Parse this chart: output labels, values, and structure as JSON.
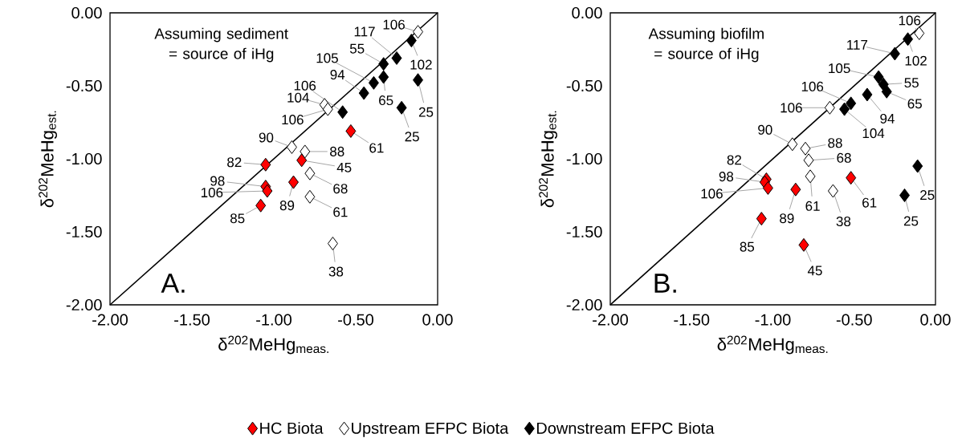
{
  "chart_data": [
    {
      "type": "scatter",
      "xlabel": "δ$^{202}$MeHg$_{meas.}$",
      "ylabel": "δ$^{202}$MeHg$_{est.}$",
      "annotations": [
        "Assuming sediment = source of iHg",
        "A.",
        {
          "text": "61",
          "x": -0.53,
          "y": -0.81
        },
        {
          "text": "45",
          "x": -0.83,
          "y": -1.01
        },
        {
          "text": "82",
          "x": -1.05,
          "y": -1.04
        },
        {
          "text": "89",
          "x": -0.88,
          "y": -1.16
        },
        {
          "text": "98",
          "x": -1.05,
          "y": -1.19
        },
        {
          "text": "106",
          "x": -1.04,
          "y": -1.22
        },
        {
          "text": "85",
          "x": -1.08,
          "y": -1.32
        },
        {
          "text": "106",
          "x": -0.12,
          "y": -0.13
        },
        {
          "text": "104",
          "x": -0.69,
          "y": -0.63
        },
        {
          "text": "106",
          "x": -0.67,
          "y": -0.66
        },
        {
          "text": "90",
          "x": -0.89,
          "y": -0.92
        },
        {
          "text": "88",
          "x": -0.81,
          "y": -0.95
        },
        {
          "text": "68",
          "x": -0.78,
          "y": -1.1
        },
        {
          "text": "61",
          "x": -0.78,
          "y": -1.26
        },
        {
          "text": "38",
          "x": -0.64,
          "y": -1.58
        },
        {
          "text": "102",
          "x": -0.16,
          "y": -0.19
        },
        {
          "text": "117",
          "x": -0.25,
          "y": -0.31
        },
        {
          "text": "55",
          "x": -0.33,
          "y": -0.35
        },
        {
          "text": "105",
          "x": -0.39,
          "y": -0.48
        },
        {
          "text": "65",
          "x": -0.33,
          "y": -0.44
        },
        {
          "text": "94",
          "x": -0.45,
          "y": -0.55
        },
        {
          "text": "106",
          "x": -0.58,
          "y": -0.68
        },
        {
          "text": "25",
          "x": -0.12,
          "y": -0.46
        },
        {
          "text": "25",
          "x": -0.22,
          "y": -0.65
        }
      ],
      "xlim": [
        -2,
        0
      ],
      "ylim": [
        -2,
        0
      ],
      "xticks": [
        {
          "value": -2,
          "label": "-2.00"
        },
        {
          "value": -1.5,
          "label": "-1.50"
        },
        {
          "value": -1,
          "label": "-1.00"
        },
        {
          "value": -0.5,
          "label": "-0.50"
        },
        {
          "value": 0,
          "label": "0.00"
        }
      ],
      "yticks": [
        {
          "value": -2,
          "label": "-2.00"
        },
        {
          "value": -1.5,
          "label": "-1.50"
        },
        {
          "value": -1,
          "label": "-1.00"
        },
        {
          "value": -0.5,
          "label": "-0.50"
        },
        {
          "value": 0,
          "label": "0.00"
        }
      ],
      "marker": "diamond",
      "legend": "bottom",
      "series": [
        {
          "type": "line",
          "color": "#000000",
          "x": [
            -2,
            0
          ],
          "values": [
            -2,
            0
          ],
          "marker": "none"
        },
        {
          "name": "HC Biota",
          "color": "#ff0000",
          "x": [
            -0.53,
            -0.83,
            -1.05,
            -0.88,
            -1.05,
            -1.04,
            -1.08
          ],
          "values": [
            -0.81,
            -1.01,
            -1.04,
            -1.16,
            -1.19,
            -1.22,
            -1.32
          ]
        },
        {
          "name": "Upstream EFPC Biota",
          "color": "#ffffff",
          "x": [
            -0.12,
            -0.69,
            -0.67,
            -0.89,
            -0.81,
            -0.78,
            -0.78,
            -0.64
          ],
          "values": [
            -0.13,
            -0.63,
            -0.66,
            -0.92,
            -0.95,
            -1.1,
            -1.26,
            -1.58
          ]
        },
        {
          "name": "Downstream EFPC Biota",
          "color": "#000000",
          "x": [
            -0.16,
            -0.25,
            -0.33,
            -0.39,
            -0.33,
            -0.45,
            -0.58,
            -0.12,
            -0.22
          ],
          "values": [
            -0.19,
            -0.31,
            -0.35,
            -0.48,
            -0.44,
            -0.55,
            -0.68,
            -0.46,
            -0.65
          ]
        }
      ]
    },
    {
      "type": "scatter",
      "xlabel": "δ$^{202}$MeHg$_{meas.}$",
      "ylabel": "δ$^{202}$MeHg$_{est.}$",
      "annotations": [
        "Assuming biofilm = source of iHg",
        "B.",
        {
          "text": "82",
          "x": -1.04,
          "y": -1.14
        },
        {
          "text": "98",
          "x": -1.05,
          "y": -1.16
        },
        {
          "text": "106",
          "x": -1.03,
          "y": -1.2
        },
        {
          "text": "89",
          "x": -0.86,
          "y": -1.21
        },
        {
          "text": "61",
          "x": -0.52,
          "y": -1.13
        },
        {
          "text": "85",
          "x": -1.07,
          "y": -1.41
        },
        {
          "text": "45",
          "x": -0.81,
          "y": -1.59
        },
        {
          "text": "106",
          "x": -0.1,
          "y": -0.14
        },
        {
          "text": "106",
          "x": -0.65,
          "y": -0.65
        },
        {
          "text": "90",
          "x": -0.88,
          "y": -0.9
        },
        {
          "text": "88",
          "x": -0.8,
          "y": -0.93
        },
        {
          "text": "68",
          "x": -0.78,
          "y": -1.01
        },
        {
          "text": "61",
          "x": -0.77,
          "y": -1.12
        },
        {
          "text": "38",
          "x": -0.63,
          "y": -1.22
        },
        {
          "text": "102",
          "x": -0.17,
          "y": -0.18
        },
        {
          "text": "117",
          "x": -0.25,
          "y": -0.28
        },
        {
          "text": "105",
          "x": -0.35,
          "y": -0.44
        },
        {
          "text": "55",
          "x": -0.32,
          "y": -0.49
        },
        {
          "text": "65",
          "x": -0.3,
          "y": -0.54
        },
        {
          "text": "94",
          "x": -0.42,
          "y": -0.56
        },
        {
          "text": "106",
          "x": -0.52,
          "y": -0.62
        },
        {
          "text": "104",
          "x": -0.56,
          "y": -0.66
        },
        {
          "text": "25",
          "x": -0.11,
          "y": -1.05
        },
        {
          "text": "25",
          "x": -0.19,
          "y": -1.25
        }
      ],
      "xlim": [
        -2,
        0
      ],
      "ylim": [
        -2,
        0
      ],
      "xticks": [
        {
          "value": -2,
          "label": "-2.00"
        },
        {
          "value": -1.5,
          "label": "-1.50"
        },
        {
          "value": -1,
          "label": "-1.00"
        },
        {
          "value": -0.5,
          "label": "-0.50"
        },
        {
          "value": 0,
          "label": "0.00"
        }
      ],
      "yticks": [
        {
          "value": -2,
          "label": "-2.00"
        },
        {
          "value": -1.5,
          "label": "-1.50"
        },
        {
          "value": -1,
          "label": "-1.00"
        },
        {
          "value": -0.5,
          "label": "-0.50"
        },
        {
          "value": 0,
          "label": "0.00"
        }
      ],
      "marker": "diamond",
      "series": [
        {
          "type": "line",
          "color": "#000000",
          "x": [
            -2,
            0
          ],
          "values": [
            -2,
            0
          ],
          "marker": "none"
        },
        {
          "color": "#ff0000",
          "x": [
            -1.04,
            -1.05,
            -1.03,
            -0.86,
            -0.52,
            -1.07,
            -0.81
          ],
          "values": [
            -1.14,
            -1.16,
            -1.2,
            -1.21,
            -1.13,
            -1.41,
            -1.59
          ]
        },
        {
          "color": "#ffffff",
          "x": [
            -0.1,
            -0.65,
            -0.88,
            -0.8,
            -0.78,
            -0.77,
            -0.63
          ],
          "values": [
            -0.14,
            -0.65,
            -0.9,
            -0.93,
            -1.01,
            -1.12,
            -1.22
          ]
        },
        {
          "color": "#000000",
          "x": [
            -0.17,
            -0.25,
            -0.35,
            -0.32,
            -0.3,
            -0.42,
            -0.52,
            -0.56,
            -0.11,
            -0.19
          ],
          "values": [
            -0.18,
            -0.28,
            -0.44,
            -0.49,
            -0.54,
            -0.56,
            -0.62,
            -0.66,
            -1.05,
            -1.25
          ]
        }
      ]
    }
  ]
}
